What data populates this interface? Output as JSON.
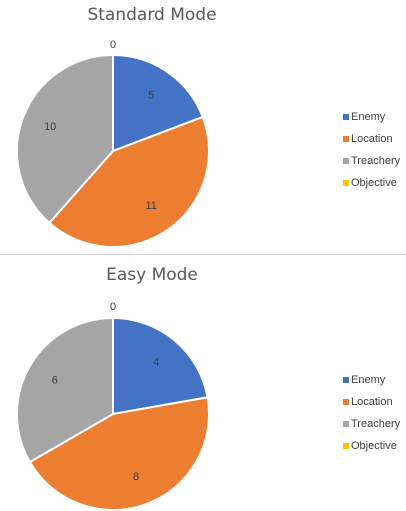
{
  "chart_data": [
    {
      "type": "pie",
      "title": "Standard Mode",
      "categories": [
        "Enemy",
        "Location",
        "Treachery",
        "Objective"
      ],
      "values": [
        5,
        11,
        10,
        0
      ],
      "colors": [
        "#4472c4",
        "#ed7d31",
        "#a5a5a5",
        "#ffc000"
      ],
      "legend_position": "right"
    },
    {
      "type": "pie",
      "title": "Easy Mode",
      "categories": [
        "Enemy",
        "Location",
        "Treachery",
        "Objective"
      ],
      "values": [
        4,
        8,
        6,
        0
      ],
      "colors": [
        "#4472c4",
        "#ed7d31",
        "#a5a5a5",
        "#ffc000"
      ],
      "legend_position": "right"
    }
  ]
}
